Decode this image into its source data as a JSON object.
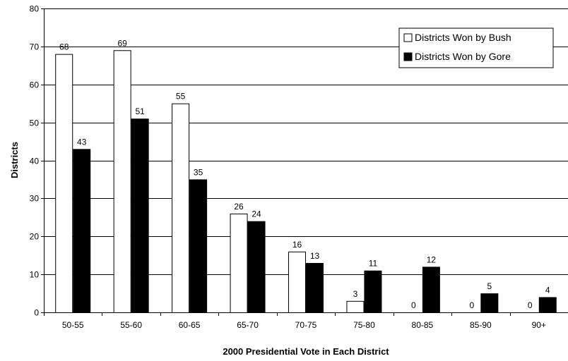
{
  "chart_data": {
    "type": "bar",
    "categories": [
      "50-55",
      "55-60",
      "60-65",
      "65-70",
      "70-75",
      "75-80",
      "80-85",
      "85-90",
      "90+"
    ],
    "series": [
      {
        "name": "Districts Won by Bush",
        "values": [
          68,
          69,
          55,
          26,
          16,
          3,
          0,
          0,
          0
        ],
        "color": "#ffffff"
      },
      {
        "name": "Districts Won by Gore",
        "values": [
          43,
          51,
          35,
          24,
          13,
          11,
          12,
          5,
          4
        ],
        "color": "#000000"
      }
    ],
    "xlabel": "2000 Presidential Vote in Each District",
    "ylabel": "Districts",
    "ylim": [
      0,
      80
    ],
    "yticks": [
      0,
      10,
      20,
      30,
      40,
      50,
      60,
      70,
      80
    ],
    "grid": true,
    "legend": "top-right",
    "data_labels": true
  }
}
